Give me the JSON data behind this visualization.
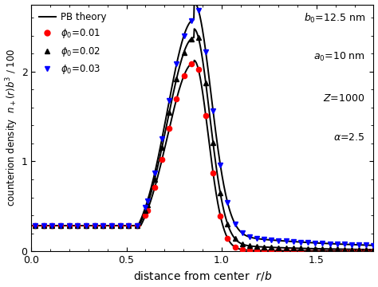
{
  "xlabel": "distance from center  $r/b$",
  "ylabel": "counterion density  $n_+(r)b^3$ / 100",
  "xlim": [
    0,
    1.8
  ],
  "ylim": [
    0,
    2.75
  ],
  "yticks": [
    0,
    1,
    2
  ],
  "xticks": [
    0,
    0.5,
    1.0,
    1.5
  ],
  "annotation_lines": [
    "$b_0$=12.5 nm",
    "$a_0$=10 nm",
    "$Z$=1000",
    "$\\alpha$=2.5"
  ]
}
